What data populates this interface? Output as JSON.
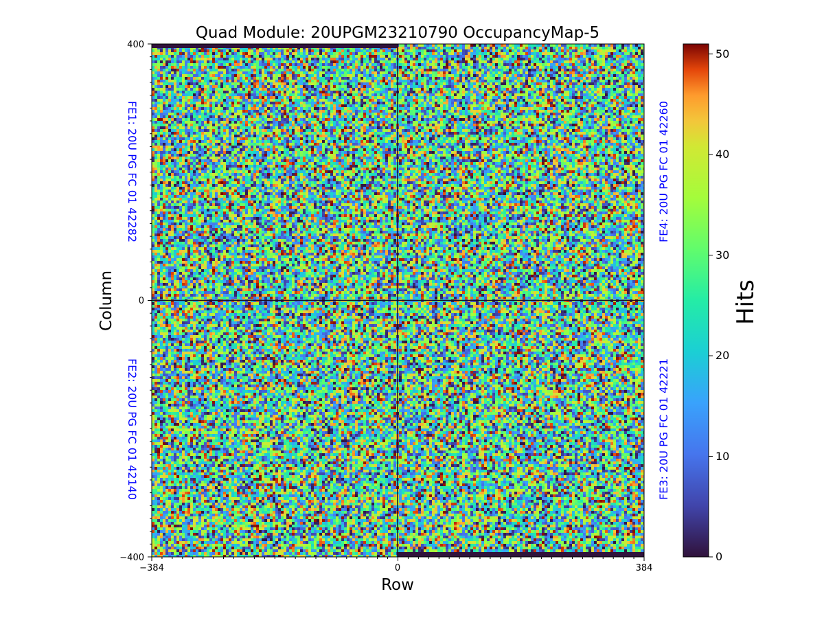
{
  "chart_data": {
    "type": "heatmap",
    "title": "Quad Module: 20UPGM23210790 OccupancyMap-5",
    "xlabel": "Row",
    "ylabel": "Column",
    "xlim": [
      -384,
      384
    ],
    "ylim": [
      -400,
      400
    ],
    "x_ticks": [
      -384,
      0,
      384
    ],
    "y_ticks": [
      400,
      0,
      -400
    ],
    "x_tick_labels": [
      "−384",
      "0",
      "384"
    ],
    "y_tick_labels": [
      "400",
      "0",
      "−400"
    ],
    "colormap": "turbo",
    "colorbar": {
      "label": "Hits",
      "range": [
        0,
        51
      ],
      "ticks": [
        0,
        10,
        20,
        30,
        40,
        50
      ],
      "tick_labels": [
        "0",
        "10",
        "20",
        "30",
        "40",
        "50"
      ]
    },
    "distribution": "approximately uniform random hits across all pixels",
    "empty_bands": [
      {
        "quadrant": "FE1",
        "edge": "top",
        "value": 0
      },
      {
        "quadrant": "FE3",
        "edge": "bottom",
        "value": 0
      }
    ],
    "grid": false,
    "quadrant_labels": [
      {
        "id": "FE1",
        "text": "FE1: 20U PG FC 01 42282",
        "placement": "left-top"
      },
      {
        "id": "FE2",
        "text": "FE2: 20U PG FC 01 42140",
        "placement": "left-bottom"
      },
      {
        "id": "FE3",
        "text": "FE3: 20U PG FC 01 42221",
        "placement": "right-bottom"
      },
      {
        "id": "FE4",
        "text": "FE4: 20U PG FC 01 42260",
        "placement": "right-top"
      }
    ],
    "label_color": "#0000ff"
  }
}
